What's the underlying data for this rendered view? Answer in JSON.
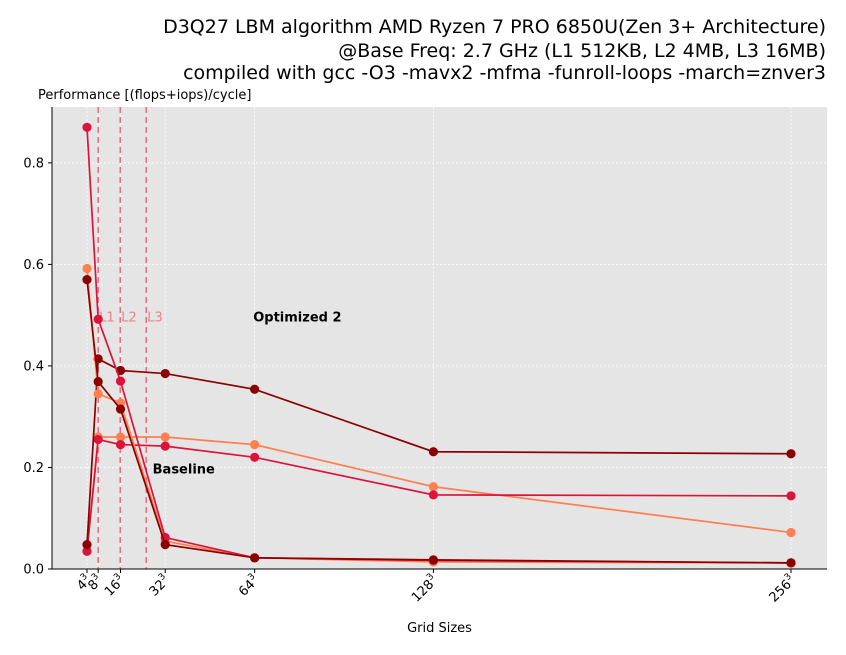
{
  "chart_data": {
    "type": "line",
    "title": [
      "D3Q27 LBM algorithm AMD Ryzen 7 PRO 6850U(Zen 3+ Architecture)",
      "@Base Freq: 2.7 GHz (L1 512KB, L2 4MB, L3 16MB)",
      "compiled with gcc -O3 -mavx2 -mfma -funroll-loops -march=znver3"
    ],
    "ylabel": "Performance [(flops+iops)/cycle]",
    "xlabel": "Grid Sizes",
    "x": [
      4,
      8,
      16,
      32,
      64,
      128,
      256
    ],
    "x_tick_labels": [
      {
        "base": "4",
        "exp": "3"
      },
      {
        "base": "8",
        "exp": "3"
      },
      {
        "base": "16",
        "exp": "3"
      },
      {
        "base": "32",
        "exp": "3"
      },
      {
        "base": "64",
        "exp": "3"
      },
      {
        "base": "128",
        "exp": "3"
      },
      {
        "base": "256",
        "exp": "3"
      }
    ],
    "ylim": [
      0,
      0.91
    ],
    "y_ticks": [
      0.0,
      0.2,
      0.4,
      0.6,
      0.8
    ],
    "y_tick_labels": [
      "0.0",
      "0.2",
      "0.4",
      "0.6",
      "0.8"
    ],
    "grid": true,
    "cache_lines": [
      {
        "label": "L1",
        "x": 8.0
      },
      {
        "label": "L2",
        "x": 15.9
      },
      {
        "label": "L3",
        "x": 25.2
      }
    ],
    "annotations": [
      {
        "text": "Optimized 2",
        "x": 63.5,
        "y": 0.497
      },
      {
        "text": "Baseline",
        "x": 27.5,
        "y": 0.198
      }
    ],
    "series": [
      {
        "color": "#ff7f50",
        "values": [
          0.035,
          0.26,
          0.26,
          0.26,
          0.245,
          0.162,
          0.072
        ]
      },
      {
        "color": "#dc143c",
        "values": [
          0.035,
          0.255,
          0.245,
          0.242,
          0.22,
          0.146,
          0.144
        ]
      },
      {
        "color": "#8b0000",
        "values": [
          0.048,
          0.414,
          0.391,
          0.385,
          0.354,
          0.231,
          0.227
        ]
      },
      {
        "color": "#ff7f50",
        "values": [
          0.592,
          0.345,
          0.327,
          0.055,
          0.022,
          0.014,
          0.012
        ]
      },
      {
        "color": "#dc143c",
        "values": [
          0.87,
          0.492,
          0.37,
          0.062,
          0.022,
          0.017,
          0.012
        ]
      },
      {
        "color": "#8b0000",
        "values": [
          0.57,
          0.369,
          0.315,
          0.048,
          0.022,
          0.018,
          0.012
        ]
      }
    ]
  }
}
